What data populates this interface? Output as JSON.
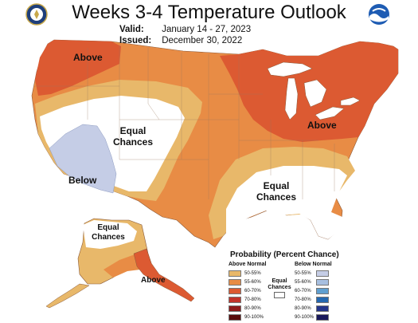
{
  "header": {
    "title": "Weeks 3-4 Temperature Outlook",
    "valid_label": "Valid:",
    "valid_value": "January 14 - 27, 2023",
    "issued_label": "Issued:",
    "issued_value": "December 30, 2022"
  },
  "map_labels": {
    "nw_above": "Above",
    "west_equal": "Equal\nChances",
    "sw_below": "Below",
    "ne_above": "Above",
    "se_equal": "Equal\nChances",
    "ak_equal": "Equal\nChances",
    "ak_above": "Above"
  },
  "legend": {
    "title": "Probability (Percent Chance)",
    "above_head": "Above Normal",
    "below_head": "Below Normal",
    "equal_label": "Equal Chances",
    "bins": [
      "50-55%",
      "55-60%",
      "60-70%",
      "70-80%",
      "80-90%",
      "90-100%"
    ],
    "above_colors": [
      "#e8b86a",
      "#e88c45",
      "#dc5a32",
      "#c2332a",
      "#8e1a1a",
      "#5a0c0c"
    ],
    "below_colors": [
      "#c5cde6",
      "#a7bfe0",
      "#5f9fd0",
      "#2468b0",
      "#24358a",
      "#1a1a5c"
    ],
    "equal_color": "#ffffff"
  },
  "colors": {
    "above_light": "#e8b86a",
    "above_mid": "#e88c45",
    "above_strong": "#dc5a32",
    "below_light": "#c5cde6",
    "equal": "#ffffff"
  }
}
